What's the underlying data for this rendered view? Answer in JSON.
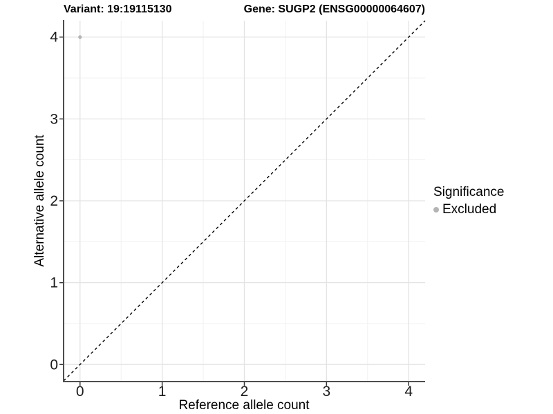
{
  "chart_data": {
    "type": "scatter",
    "title_left": "Variant: 19:19115130",
    "title_right": "Gene: SUGP2 (ENSG00000064607)",
    "xlabel": "Reference allele count",
    "ylabel": "Alternative allele count",
    "xlim": [
      -0.2,
      4.2
    ],
    "ylim": [
      -0.2,
      4.2
    ],
    "x_ticks": [
      0,
      1,
      2,
      3,
      4
    ],
    "y_ticks": [
      0,
      1,
      2,
      3,
      4
    ],
    "x_minor_ticks": [
      0.5,
      1.5,
      2.5,
      3.5
    ],
    "y_minor_ticks": [
      0.5,
      1.5,
      2.5,
      3.5
    ],
    "grid": "major and minor gridlines on white background",
    "legend_position": "right, vertically centered",
    "series": [
      {
        "name": "Excluded",
        "marker": "circle",
        "color": "#b4b4b4",
        "points": [
          {
            "x": 0,
            "y": 4
          }
        ]
      }
    ],
    "reference_line": {
      "type": "identity y=x",
      "slope": 1,
      "intercept": 0,
      "style": "dashed",
      "color": "#000000"
    }
  },
  "legend": {
    "title": "Significance",
    "entries": [
      {
        "label": "Excluded",
        "color": "#b4b4b4",
        "marker": "circle"
      }
    ]
  },
  "colors": {
    "point": "#b4b4b4",
    "grid_major": "#e3e3e3",
    "grid_minor": "#f1f1f1",
    "axis_line": "#4d4d4d",
    "tick_mark": "#333333",
    "tick_text": "#1a1a1a",
    "title_text": "#000000",
    "dashed_line": "#000000",
    "background": "#ffffff"
  }
}
